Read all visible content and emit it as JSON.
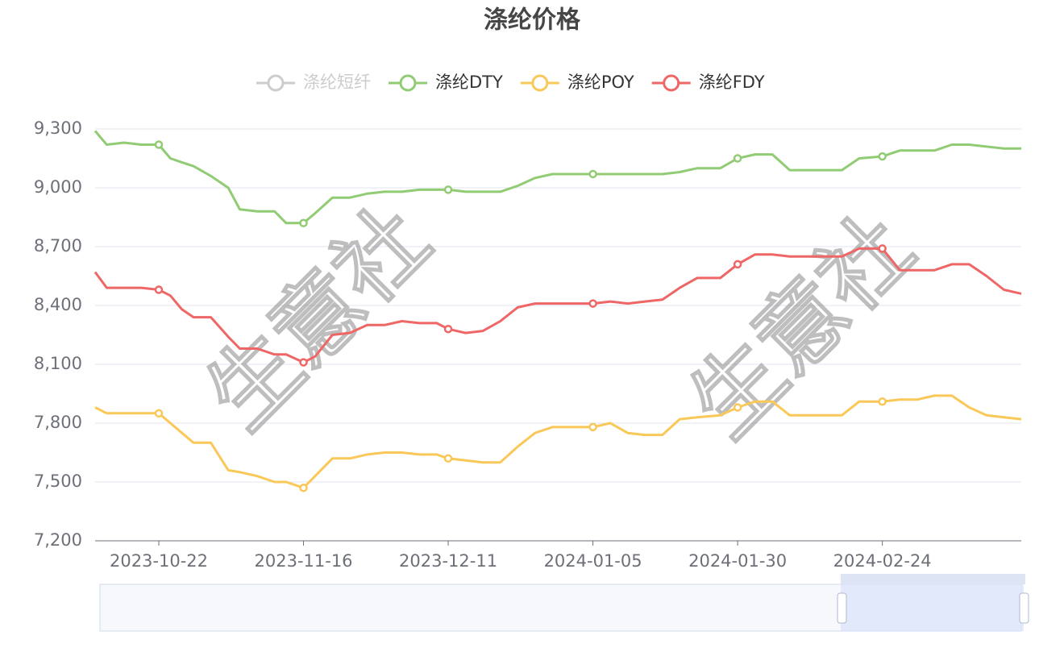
{
  "chart_data": {
    "type": "line",
    "title": "涤纶价格",
    "watermark": "生意社",
    "hidden_series": [
      {
        "name": "涤纶短纤",
        "color": "#cccccc"
      }
    ],
    "x": [
      "2023-10-11",
      "2023-10-13",
      "2023-10-16",
      "2023-10-19",
      "2023-10-22",
      "2023-10-24",
      "2023-10-26",
      "2023-10-28",
      "2023-10-31",
      "2023-11-03",
      "2023-11-05",
      "2023-11-08",
      "2023-11-11",
      "2023-11-13",
      "2023-11-16",
      "2023-11-18",
      "2023-11-21",
      "2023-11-24",
      "2023-11-27",
      "2023-11-30",
      "2023-12-03",
      "2023-12-06",
      "2023-12-09",
      "2023-12-11",
      "2023-12-14",
      "2023-12-17",
      "2023-12-20",
      "2023-12-23",
      "2023-12-26",
      "2023-12-29",
      "2024-01-01",
      "2024-01-05",
      "2024-01-08",
      "2024-01-11",
      "2024-01-14",
      "2024-01-17",
      "2024-01-20",
      "2024-01-23",
      "2024-01-27",
      "2024-01-30",
      "2024-02-02",
      "2024-02-05",
      "2024-02-08",
      "2024-02-11",
      "2024-02-14",
      "2024-02-17",
      "2024-02-20",
      "2024-02-24",
      "2024-02-27",
      "2024-03-01",
      "2024-03-04",
      "2024-03-07",
      "2024-03-10",
      "2024-03-13",
      "2024-03-16",
      "2024-03-19"
    ],
    "series": [
      {
        "name": "涤纶DTY",
        "color": "#91cc75",
        "values": [
          9290,
          9220,
          9230,
          9220,
          9220,
          9150,
          9130,
          9110,
          9060,
          9000,
          8890,
          8880,
          8880,
          8820,
          8820,
          8870,
          8950,
          8950,
          8970,
          8980,
          8980,
          8990,
          8990,
          8990,
          8980,
          8980,
          8980,
          9010,
          9050,
          9070,
          9070,
          9070,
          9070,
          9070,
          9070,
          9070,
          9080,
          9100,
          9100,
          9150,
          9170,
          9170,
          9090,
          9090,
          9090,
          9090,
          9150,
          9160,
          9190,
          9190,
          9190,
          9220,
          9220,
          9210,
          9200,
          9200
        ]
      },
      {
        "name": "涤纶POY",
        "color": "#fac858",
        "values": [
          7880,
          7850,
          7850,
          7850,
          7850,
          7800,
          7750,
          7700,
          7700,
          7560,
          7550,
          7530,
          7500,
          7500,
          7470,
          7530,
          7620,
          7620,
          7640,
          7650,
          7650,
          7640,
          7640,
          7620,
          7610,
          7600,
          7600,
          7680,
          7750,
          7780,
          7780,
          7780,
          7800,
          7750,
          7740,
          7740,
          7820,
          7830,
          7840,
          7880,
          7910,
          7910,
          7840,
          7840,
          7840,
          7840,
          7910,
          7910,
          7920,
          7920,
          7940,
          7940,
          7880,
          7840,
          7830,
          7820
        ]
      },
      {
        "name": "涤纶FDY",
        "color": "#ee6666",
        "values": [
          8570,
          8490,
          8490,
          8490,
          8480,
          8450,
          8380,
          8340,
          8340,
          8240,
          8180,
          8180,
          8150,
          8150,
          8110,
          8140,
          8250,
          8260,
          8300,
          8300,
          8320,
          8310,
          8310,
          8280,
          8260,
          8270,
          8320,
          8390,
          8410,
          8410,
          8410,
          8410,
          8420,
          8410,
          8420,
          8430,
          8490,
          8540,
          8540,
          8610,
          8660,
          8660,
          8650,
          8650,
          8650,
          8650,
          8690,
          8690,
          8580,
          8580,
          8580,
          8610,
          8610,
          8550,
          8480,
          8460
        ]
      }
    ],
    "xlim": [
      "2023-10-11",
      "2024-03-19"
    ],
    "xticks": [
      "2023-10-22",
      "2023-11-16",
      "2023-12-11",
      "2024-01-05",
      "2024-01-30",
      "2024-02-24"
    ],
    "ylim": [
      7200,
      9300
    ],
    "yticks": [
      {
        "value": 7200,
        "label": "7,200"
      },
      {
        "value": 7500,
        "label": "7,500"
      },
      {
        "value": 7800,
        "label": "7,800"
      },
      {
        "value": 8100,
        "label": "8,100"
      },
      {
        "value": 8400,
        "label": "8,400"
      },
      {
        "value": 8700,
        "label": "8,700"
      },
      {
        "value": 9000,
        "label": "9,000"
      },
      {
        "value": 9300,
        "label": "9,300"
      }
    ],
    "grid": true
  }
}
